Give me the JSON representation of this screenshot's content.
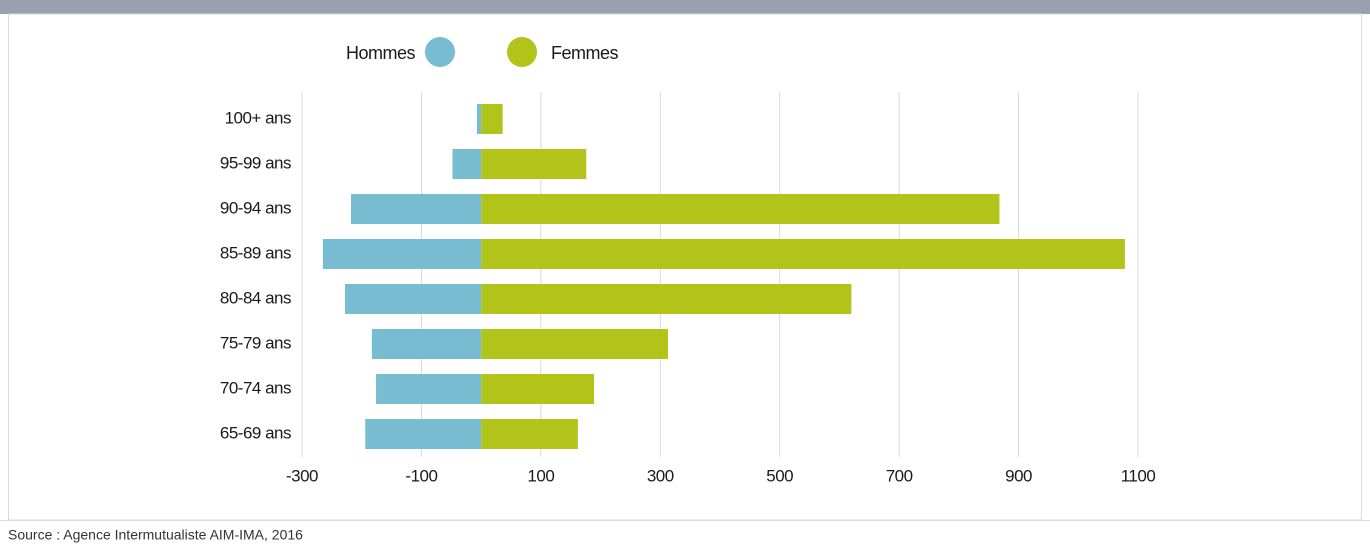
{
  "chart_data": {
    "type": "bar",
    "orientation": "horizontal",
    "stacked": false,
    "categories": [
      "100+ ans",
      "95-99 ans",
      "90-94 ans",
      "85-89 ans",
      "80-84 ans",
      "75-79 ans",
      "70-74 ans",
      "65-69 ans"
    ],
    "series": [
      {
        "name": "Hommes",
        "color": "#78bcd1",
        "values": [
          -7,
          -48,
          -218,
          -265,
          -228,
          -183,
          -176,
          -194
        ]
      },
      {
        "name": "Femmes",
        "color": "#b2c31a",
        "values": [
          36,
          176,
          868,
          1078,
          620,
          313,
          189,
          162
        ]
      }
    ],
    "xlim": [
      -300,
      1100
    ],
    "xticks": [
      -300,
      -100,
      100,
      300,
      500,
      700,
      900,
      1100
    ],
    "grid": true,
    "legend": "top",
    "source": "Source : Agence Intermutualiste AIM-IMA, 2016"
  }
}
